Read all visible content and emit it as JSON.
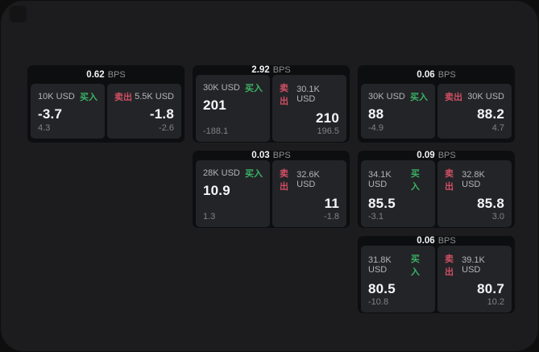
{
  "colors": {
    "buy_green": "#3bb266",
    "sell_red": "#d04f64",
    "panel_bg": "#232427",
    "card_bg": "#0d0e0f",
    "window_bg": "#1c1c1e"
  },
  "cards": [
    {
      "bps_value": "0.62",
      "bps_unit": "BPS",
      "buy": {
        "amount": "10K USD",
        "side": "买入",
        "value": "-3.7",
        "sub": "4.3"
      },
      "sell": {
        "amount": "5.5K USD",
        "side": "卖出",
        "value": "-1.8",
        "sub": "-2.6"
      },
      "grid": {
        "row": 1,
        "col": 1
      }
    },
    {
      "bps_value": "2.92",
      "bps_unit": "BPS",
      "buy": {
        "amount": "30K USD",
        "side": "买入",
        "value": "201",
        "sub": "-188.1"
      },
      "sell": {
        "amount": "30.1K USD",
        "side": "卖出",
        "value": "210",
        "sub": "196.5"
      },
      "grid": {
        "row": 1,
        "col": 2
      }
    },
    {
      "bps_value": "0.06",
      "bps_unit": "BPS",
      "buy": {
        "amount": "30K USD",
        "side": "买入",
        "value": "88",
        "sub": "-4.9"
      },
      "sell": {
        "amount": "30K USD",
        "side": "卖出",
        "value": "88.2",
        "sub": "4.7"
      },
      "grid": {
        "row": 1,
        "col": 3
      }
    },
    {
      "bps_value": "0.03",
      "bps_unit": "BPS",
      "buy": {
        "amount": "28K USD",
        "side": "买入",
        "value": "10.9",
        "sub": "1.3"
      },
      "sell": {
        "amount": "32.6K USD",
        "side": "卖出",
        "value": "11",
        "sub": "-1.8"
      },
      "grid": {
        "row": 2,
        "col": 2
      }
    },
    {
      "bps_value": "0.09",
      "bps_unit": "BPS",
      "buy": {
        "amount": "34.1K USD",
        "side": "买入",
        "value": "85.5",
        "sub": "-3.1"
      },
      "sell": {
        "amount": "32.8K USD",
        "side": "卖出",
        "value": "85.8",
        "sub": "3.0"
      },
      "grid": {
        "row": 2,
        "col": 3
      }
    },
    {
      "bps_value": "0.06",
      "bps_unit": "BPS",
      "buy": {
        "amount": "31.8K USD",
        "side": "买入",
        "value": "80.5",
        "sub": "-10.8"
      },
      "sell": {
        "amount": "39.1K USD",
        "side": "卖出",
        "value": "80.7",
        "sub": "10.2"
      },
      "grid": {
        "row": 3,
        "col": 3
      }
    }
  ]
}
